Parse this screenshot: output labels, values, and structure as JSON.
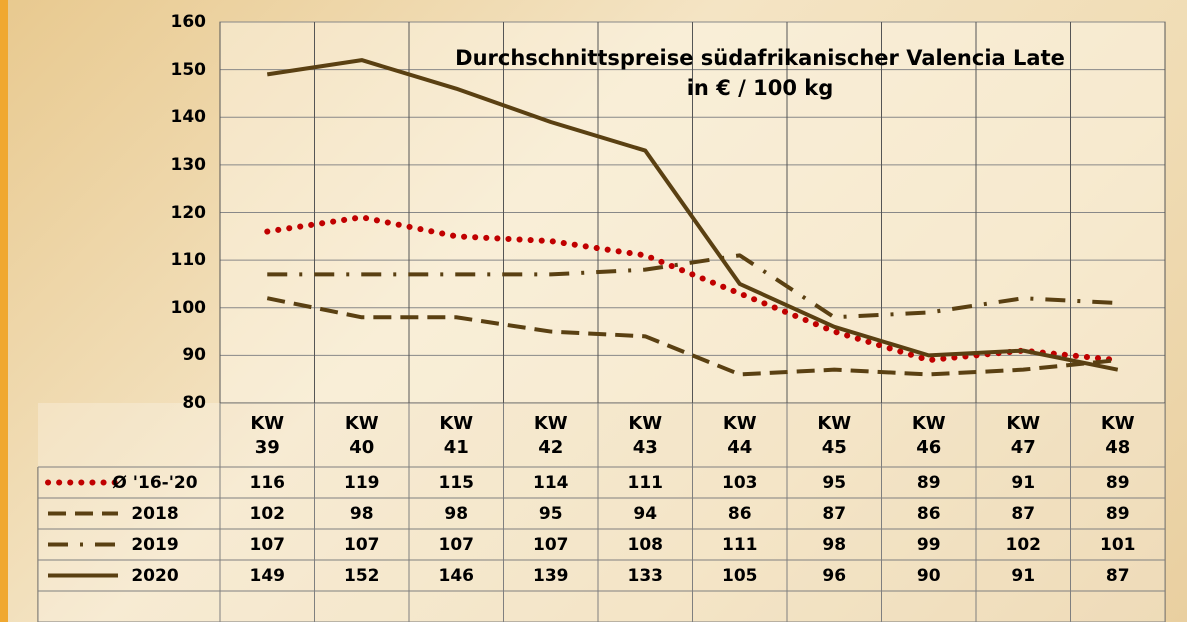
{
  "chart_data": {
    "type": "line",
    "title": "Durchschnittspreise südafrikanischer Valencia Late",
    "subtitle": "in € / 100 kg",
    "categories": [
      "KW 39",
      "KW 40",
      "KW 41",
      "KW 42",
      "KW 43",
      "KW 44",
      "KW 45",
      "KW 46",
      "KW 47",
      "KW 48"
    ],
    "series": [
      {
        "name": "Ø '16-'20",
        "color": "#c00000",
        "line_style": "dotted",
        "values": [
          116,
          119,
          115,
          114,
          111,
          103,
          95,
          89,
          91,
          89
        ]
      },
      {
        "name": "2018",
        "color": "#5a4012",
        "line_style": "dashed",
        "values": [
          102,
          98,
          98,
          95,
          94,
          86,
          87,
          86,
          87,
          89
        ]
      },
      {
        "name": "2019",
        "color": "#5a4012",
        "line_style": "dashdot",
        "values": [
          107,
          107,
          107,
          107,
          108,
          111,
          98,
          99,
          102,
          101
        ]
      },
      {
        "name": "2020",
        "color": "#5a4012",
        "line_style": "solid",
        "values": [
          149,
          152,
          146,
          139,
          133,
          105,
          96,
          90,
          91,
          87
        ]
      }
    ],
    "ylim": [
      80,
      160
    ],
    "yticks": [
      80,
      90,
      100,
      110,
      120,
      130,
      140,
      150,
      160
    ],
    "grid": true
  }
}
